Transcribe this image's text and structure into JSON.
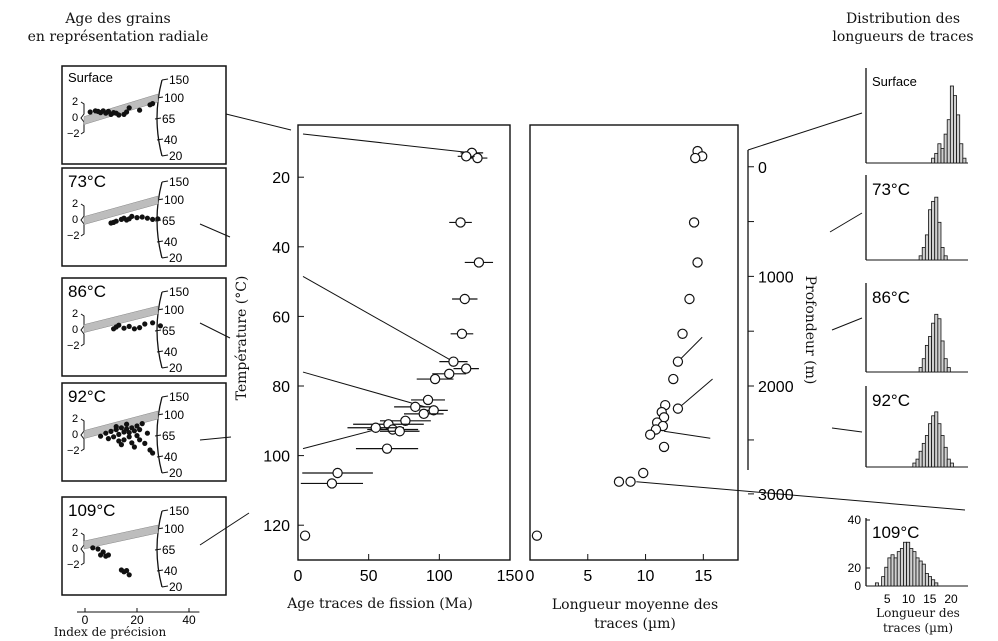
{
  "headers": {
    "radial_line1": "Age des grains",
    "radial_line2": "en représentation radiale",
    "dist_line1": "Distribution des",
    "dist_line2": "longueurs de traces"
  },
  "radial_panels": [
    {
      "label": "Surface",
      "ages": [
        150,
        100,
        65,
        40,
        20
      ],
      "band_y": -1.3,
      "points": [
        [
          2,
          1.0
        ],
        [
          4,
          1.2
        ],
        [
          5,
          1.1
        ],
        [
          6,
          0.9
        ],
        [
          7,
          1.2
        ],
        [
          8,
          0.8
        ],
        [
          9,
          1.1
        ],
        [
          10,
          0.6
        ],
        [
          11,
          0.9
        ],
        [
          12,
          0.8
        ],
        [
          13,
          0.5
        ],
        [
          15,
          0.6
        ],
        [
          16,
          1.0
        ],
        [
          17,
          1.7
        ],
        [
          21,
          1.3
        ],
        [
          25,
          2.2
        ],
        [
          26,
          2.4
        ]
      ]
    },
    {
      "label": "73°C",
      "ages": [
        150,
        100,
        65,
        40,
        20
      ],
      "band_y": -0.3,
      "points": [
        [
          10,
          -0.5
        ],
        [
          11,
          -0.4
        ],
        [
          12,
          -0.2
        ],
        [
          14,
          0.1
        ],
        [
          15,
          0.3
        ],
        [
          16,
          0.0
        ],
        [
          17,
          0.2
        ],
        [
          18,
          0.6
        ],
        [
          20,
          0.4
        ],
        [
          22,
          0.5
        ],
        [
          24,
          0.3
        ],
        [
          26,
          0.1
        ],
        [
          28,
          0.2
        ]
      ]
    },
    {
      "label": "86°C",
      "ages": [
        150,
        100,
        65,
        40,
        20
      ],
      "band_y": 0.7,
      "points": [
        [
          11,
          0.2
        ],
        [
          12,
          0.5
        ],
        [
          13,
          0.8
        ],
        [
          15,
          0.3
        ],
        [
          17,
          0.6
        ],
        [
          19,
          0.2
        ],
        [
          21,
          0.4
        ],
        [
          23,
          1.0
        ],
        [
          26,
          1.2
        ],
        [
          29,
          0.7
        ]
      ]
    },
    {
      "label": "92°C",
      "ages": [
        150,
        100,
        65,
        40,
        20
      ],
      "band_y": 0.2,
      "points": [
        [
          6,
          -0.2
        ],
        [
          8,
          0.3
        ],
        [
          9,
          -0.6
        ],
        [
          10,
          0.6
        ],
        [
          11,
          -0.3
        ],
        [
          12,
          0.9
        ],
        [
          12,
          1.4
        ],
        [
          13,
          -1.0
        ],
        [
          13,
          0.1
        ],
        [
          14,
          1.2
        ],
        [
          14,
          -1.6
        ],
        [
          15,
          0.5
        ],
        [
          15,
          -0.8
        ],
        [
          16,
          1.0
        ],
        [
          16,
          1.8
        ],
        [
          17,
          -0.3
        ],
        [
          17,
          0.4
        ],
        [
          18,
          -1.3
        ],
        [
          18,
          1.2
        ],
        [
          19,
          0.7
        ],
        [
          19,
          -2.0
        ],
        [
          20,
          1.5
        ],
        [
          20,
          -0.1
        ],
        [
          21,
          0.9
        ],
        [
          21,
          -0.8
        ],
        [
          22,
          1.9
        ],
        [
          23,
          -1.4
        ],
        [
          24,
          0.3
        ],
        [
          25,
          -2.5
        ],
        [
          26,
          -3.0
        ]
      ]
    },
    {
      "label": "109°C",
      "ages": [
        150,
        100,
        65,
        40,
        20
      ],
      "band_y": 2.0,
      "points": [
        [
          3,
          0.2
        ],
        [
          5,
          0.0
        ],
        [
          6,
          -1.0
        ],
        [
          7,
          -0.5
        ],
        [
          8,
          -1.2
        ],
        [
          9,
          -1.0
        ],
        [
          14,
          -3.5
        ],
        [
          15,
          -3.8
        ],
        [
          16,
          -3.6
        ],
        [
          17,
          -4.3
        ]
      ]
    }
  ],
  "radial_xaxis": {
    "ticks": [
      "0",
      "20",
      "40"
    ],
    "label": "Index de précision"
  },
  "chart_data": [
    {
      "type": "scatter",
      "xlabel": "Age traces de fission (Ma)",
      "ylabel": "Température (°C)",
      "xlim": [
        0,
        150
      ],
      "ylim": [
        130,
        5
      ],
      "xticks": [
        0,
        50,
        100,
        150
      ],
      "yticks": [
        20,
        40,
        60,
        80,
        100,
        120
      ],
      "points": [
        {
          "x": 123,
          "y": 13,
          "err": 8
        },
        {
          "x": 127,
          "y": 14.5,
          "err": 7
        },
        {
          "x": 119,
          "y": 14,
          "err": 6
        },
        {
          "x": 115,
          "y": 33,
          "err": 8
        },
        {
          "x": 128,
          "y": 44.5,
          "err": 10
        },
        {
          "x": 118,
          "y": 55,
          "err": 9
        },
        {
          "x": 116,
          "y": 65,
          "err": 8
        },
        {
          "x": 110,
          "y": 73,
          "err": 10
        },
        {
          "x": 119,
          "y": 75,
          "err": 9
        },
        {
          "x": 107,
          "y": 76.5,
          "err": 12
        },
        {
          "x": 97,
          "y": 78,
          "err": 13
        },
        {
          "x": 83,
          "y": 86,
          "err": 15
        },
        {
          "x": 92,
          "y": 84,
          "err": 12
        },
        {
          "x": 96,
          "y": 87,
          "err": 10
        },
        {
          "x": 89,
          "y": 88,
          "err": 14
        },
        {
          "x": 76,
          "y": 90,
          "err": 18
        },
        {
          "x": 64,
          "y": 91,
          "err": 25
        },
        {
          "x": 67,
          "y": 92.5,
          "err": 18
        },
        {
          "x": 55,
          "y": 92,
          "err": 20
        },
        {
          "x": 72,
          "y": 93,
          "err": 14
        },
        {
          "x": 63,
          "y": 98,
          "err": 22
        },
        {
          "x": 28,
          "y": 105,
          "err": 25
        },
        {
          "x": 24,
          "y": 108,
          "err": 22
        },
        {
          "x": 5,
          "y": 123,
          "err": 0
        }
      ]
    },
    {
      "type": "scatter",
      "xlabel": "Longueur moyenne des traces (µm)",
      "ylabel": "Profondeur (m)",
      "xlim": [
        0,
        18
      ],
      "ylim_temperature": [
        130,
        5
      ],
      "xticks": [
        0,
        5,
        10,
        15
      ],
      "depth_ticks": [
        {
          "label": "0",
          "temp": 17
        },
        {
          "label": "1000",
          "temp": 48.5
        },
        {
          "label": "2000",
          "temp": 80
        },
        {
          "label": "3000",
          "temp": 111
        }
      ],
      "points": [
        {
          "x": 14.5,
          "y": 12.5
        },
        {
          "x": 14.9,
          "y": 14
        },
        {
          "x": 14.3,
          "y": 14.5
        },
        {
          "x": 14.2,
          "y": 33
        },
        {
          "x": 14.5,
          "y": 44.5
        },
        {
          "x": 13.8,
          "y": 55
        },
        {
          "x": 13.2,
          "y": 65
        },
        {
          "x": 12.8,
          "y": 73
        },
        {
          "x": 12.4,
          "y": 78
        },
        {
          "x": 11.7,
          "y": 85.5
        },
        {
          "x": 12.8,
          "y": 86.5
        },
        {
          "x": 11.4,
          "y": 87.5
        },
        {
          "x": 11.6,
          "y": 89
        },
        {
          "x": 11.0,
          "y": 90.5
        },
        {
          "x": 11.5,
          "y": 91.5
        },
        {
          "x": 10.9,
          "y": 92.5
        },
        {
          "x": 10.4,
          "y": 94
        },
        {
          "x": 11.6,
          "y": 97.5
        },
        {
          "x": 9.8,
          "y": 105
        },
        {
          "x": 8.7,
          "y": 107.5
        },
        {
          "x": 7.7,
          "y": 107.5
        },
        {
          "x": 0.6,
          "y": 123
        }
      ]
    }
  ],
  "histograms": [
    {
      "label": "Surface",
      "bars": [
        0,
        0,
        0,
        0,
        0,
        0,
        0,
        0,
        0,
        0,
        0,
        0,
        0,
        0,
        0,
        0,
        0,
        0,
        0,
        0,
        0,
        1,
        2,
        4,
        3,
        6,
        9,
        16,
        14,
        10,
        4,
        1
      ],
      "y_ticks": []
    },
    {
      "label": "73°C",
      "bars": [
        0,
        0,
        0,
        0,
        0,
        0,
        0,
        0,
        0,
        0,
        0,
        0,
        0,
        0,
        0,
        0,
        0,
        1,
        3,
        6,
        12,
        14,
        15,
        9,
        3,
        1,
        0,
        0,
        0,
        0,
        0,
        0
      ],
      "y_ticks": []
    },
    {
      "label": "86°C",
      "bars": [
        0,
        0,
        0,
        0,
        0,
        0,
        0,
        0,
        0,
        0,
        0,
        0,
        0,
        0,
        0,
        0,
        0,
        1,
        3,
        6,
        8,
        11,
        13,
        12,
        7,
        3,
        1,
        0,
        0,
        0,
        0,
        0
      ],
      "y_ticks": []
    },
    {
      "label": "92°C",
      "bars": [
        0,
        0,
        0,
        0,
        0,
        0,
        0,
        0,
        0,
        0,
        0,
        0,
        0,
        0,
        0,
        1,
        2,
        4,
        6,
        8,
        11,
        13,
        14,
        11,
        8,
        5,
        2,
        1,
        0,
        0,
        0,
        0
      ],
      "y_ticks": []
    },
    {
      "label": "109°C",
      "bars": [
        0,
        0,
        0,
        1,
        0,
        3,
        6,
        9,
        10,
        9,
        11,
        12,
        14,
        14,
        12,
        11,
        9,
        8,
        7,
        4,
        3,
        2,
        1,
        0,
        0,
        0,
        0,
        0,
        0,
        0,
        0,
        0
      ],
      "y_ticks": [
        "40",
        "20",
        "0"
      ]
    }
  ],
  "hist_xaxis": {
    "ticks": [
      "5",
      "10",
      "15",
      "20"
    ],
    "label_line1": "Longueur des",
    "label_line2": "traces (µm)"
  }
}
